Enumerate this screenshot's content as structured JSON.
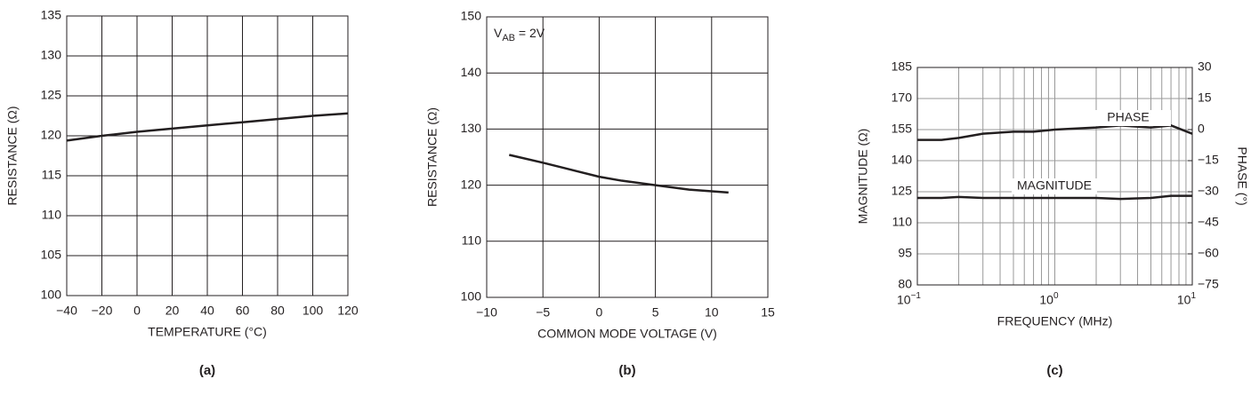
{
  "chart_data": [
    {
      "type": "line",
      "caption": "(a)",
      "xlabel": "TEMPERATURE (°C)",
      "ylabel": "RESISTANCE (Ω)",
      "x": [
        -40,
        -20,
        0,
        20,
        40,
        60,
        80,
        100,
        120
      ],
      "values": [
        119.4,
        120.0,
        120.5,
        120.9,
        121.3,
        121.7,
        122.1,
        122.5,
        122.8
      ],
      "color": "#231f20",
      "grid": true,
      "grid_color": "#231f20",
      "xlim": [
        -40,
        120
      ],
      "ylim": [
        100,
        135
      ],
      "xticks": [
        {
          "value": -40,
          "label": "−40"
        },
        {
          "value": -20,
          "label": "−20"
        },
        0,
        20,
        40,
        60,
        80,
        100,
        120
      ],
      "yticks": [
        100,
        105,
        110,
        115,
        120,
        125,
        130,
        135
      ]
    },
    {
      "type": "line",
      "caption": "(b)",
      "xlabel": "COMMON MODE VOLTAGE (V)",
      "ylabel": "RESISTANCE (Ω)",
      "annotation": {
        "text": "V",
        "subscript": "AB",
        "suffix": " = 2V"
      },
      "x": [
        -8,
        -5,
        -2,
        0,
        2,
        5,
        8,
        11.5
      ],
      "values": [
        125.4,
        124.0,
        122.5,
        121.5,
        120.8,
        120.0,
        119.2,
        118.7
      ],
      "color": "#231f20",
      "grid": true,
      "grid_color": "#231f20",
      "xlim": [
        -10,
        15
      ],
      "ylim": [
        100,
        150
      ],
      "xticks": [
        {
          "value": -10,
          "label": "−10"
        },
        {
          "value": -5,
          "label": "−5"
        },
        0,
        5,
        10,
        15
      ],
      "yticks": [
        100,
        110,
        120,
        130,
        140,
        150
      ]
    },
    {
      "type": "line",
      "caption": "(c)",
      "xlabel": "FREQUENCY (MHz)",
      "ylabel": "MAGNITUDE (Ω)",
      "y2label": "PHASE (°)",
      "xscale": "log",
      "grid": true,
      "grid_color": "#999999",
      "x": [
        0.1,
        0.15,
        0.2,
        0.3,
        0.5,
        0.7,
        1,
        2,
        3,
        5,
        7,
        10
      ],
      "series": [
        {
          "name": "PHASE",
          "color": "#231f20",
          "axis": "y2",
          "values": [
            -5,
            -5,
            -4,
            -2,
            -1,
            -1,
            0,
            1,
            2,
            1,
            2,
            -2
          ]
        },
        {
          "name": "MAGNITUDE",
          "color": "#231f20",
          "values": [
            122,
            122,
            122.5,
            122,
            122,
            122,
            122,
            122,
            121.5,
            122,
            123,
            123
          ]
        }
      ],
      "xlim": [
        0.1,
        10
      ],
      "ylim": [
        80,
        185
      ],
      "y2lim": [
        -75,
        30
      ],
      "xticks": [
        {
          "value": 0.1,
          "label": "10",
          "exponent": "−1"
        },
        {
          "value": 1,
          "label": "10",
          "exponent": "0"
        },
        {
          "value": 10,
          "label": "10",
          "exponent": "1"
        }
      ],
      "minor_xticks": [
        0.2,
        0.3,
        0.4,
        0.5,
        0.6,
        0.7,
        0.8,
        0.9,
        2,
        3,
        4,
        5,
        6,
        7,
        8,
        9
      ],
      "yticks": [
        80,
        95,
        110,
        125,
        140,
        155,
        170,
        185
      ],
      "y2ticks": [
        {
          "value": -75,
          "label": "−75"
        },
        {
          "value": -60,
          "label": "−60"
        },
        {
          "value": -45,
          "label": "−45"
        },
        {
          "value": -30,
          "label": "−30"
        },
        {
          "value": -15,
          "label": "−15"
        },
        0,
        15,
        30
      ]
    }
  ]
}
